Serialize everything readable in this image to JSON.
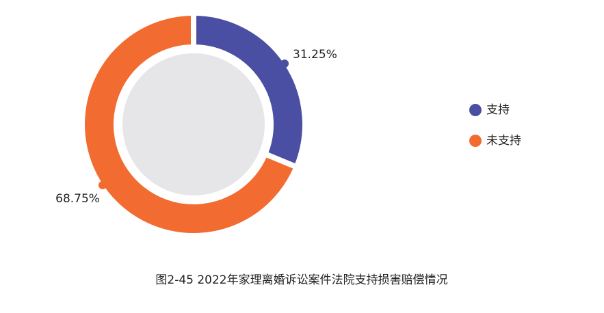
{
  "chart_data": {
    "type": "donut",
    "title": "图2-45  2022年家理离婚诉讼案件法院支持损害赔偿情况",
    "categories": [
      "支持",
      "未支持"
    ],
    "values": [
      31.25,
      68.75
    ],
    "value_labels": [
      "31.25%",
      "68.75%"
    ],
    "colors": [
      "#4a4fa3",
      "#f26b30"
    ],
    "legend": "right"
  }
}
